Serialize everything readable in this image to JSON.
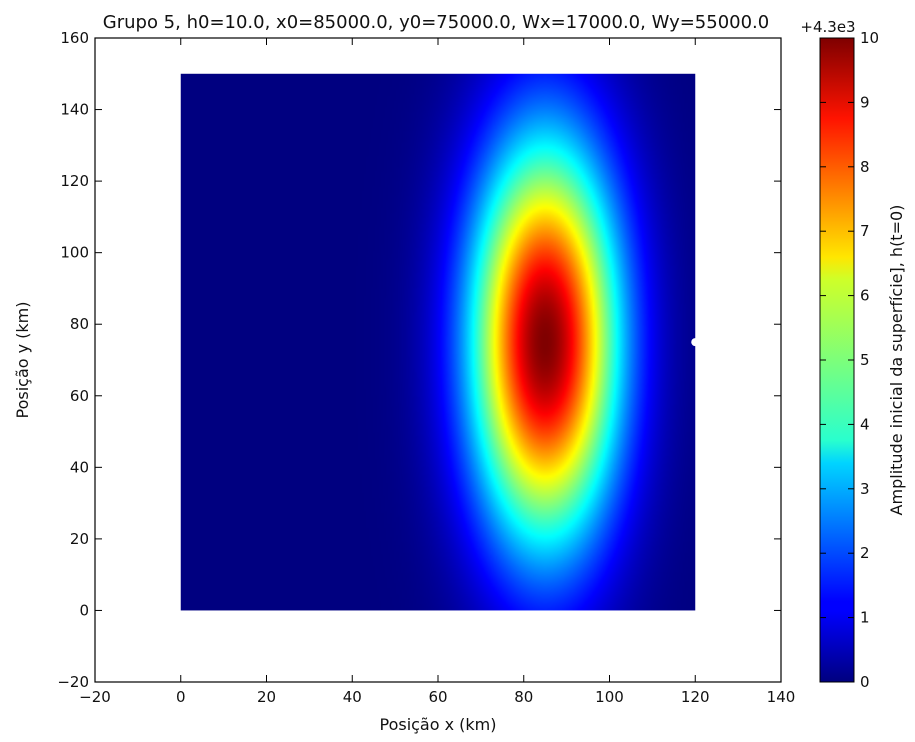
{
  "chart_data": [
    {
      "type": "heatmap",
      "title": "Grupo 5, h0=10.0, x0=85000.0, y0=75000.0, Wx=17000.0, Wy=55000.0",
      "xlabel": "Posição x (km)",
      "ylabel": "Posição y (km)",
      "xlim": [
        -20,
        140
      ],
      "ylim": [
        -20,
        160
      ],
      "xticks": [
        "−20",
        "0",
        "20",
        "40",
        "60",
        "80",
        "100",
        "120",
        "140"
      ],
      "yticks": [
        "−20",
        "0",
        "20",
        "40",
        "60",
        "80",
        "100",
        "120",
        "140",
        "160"
      ],
      "x_ticks_values": [
        -20,
        0,
        20,
        40,
        60,
        80,
        100,
        120,
        140
      ],
      "y_ticks_values": [
        -20,
        0,
        20,
        40,
        60,
        80,
        100,
        120,
        140,
        160
      ],
      "field": {
        "function": "gaussian",
        "h0": 10.0,
        "x0_km": 85,
        "y0_km": 75,
        "Wx_km": 17,
        "Wy_km": 55,
        "x_extent": [
          0,
          120
        ],
        "y_extent": [
          0,
          150
        ]
      },
      "marker": {
        "x": 120,
        "y": 75,
        "color": "#ffffff"
      },
      "colorbar": {
        "label": "Amplitude inicial da superfície], h(t=0)",
        "ticks": [
          "0",
          "1",
          "2",
          "3",
          "4",
          "5",
          "6",
          "7",
          "8",
          "9",
          "10"
        ],
        "tick_values": [
          0,
          1,
          2,
          3,
          4,
          5,
          6,
          7,
          8,
          9,
          10
        ],
        "range": [
          0,
          10
        ],
        "offset_text": "+4.3e3",
        "colormap": "jet"
      }
    }
  ]
}
